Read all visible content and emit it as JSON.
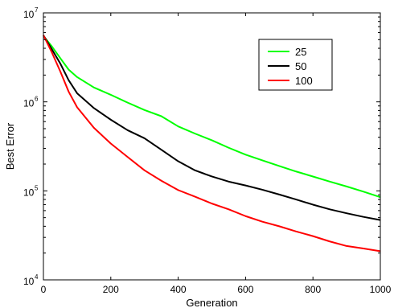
{
  "chart_data": {
    "type": "line",
    "title": "",
    "xlabel": "Generation",
    "ylabel": "Best Error",
    "xlim": [
      0,
      1000
    ],
    "ylim": [
      10000,
      10000000
    ],
    "yscale": "log",
    "grid": false,
    "legend_position": "top-right",
    "x_ticks": [
      {
        "value": 0,
        "label": "0"
      },
      {
        "value": 200,
        "label": "200"
      },
      {
        "value": 400,
        "label": "400"
      },
      {
        "value": 600,
        "label": "600"
      },
      {
        "value": 800,
        "label": "800"
      },
      {
        "value": 1000,
        "label": "1000"
      }
    ],
    "y_ticks": [
      {
        "value": 10000,
        "base": "10",
        "exp": "4"
      },
      {
        "value": 100000,
        "base": "10",
        "exp": "5"
      },
      {
        "value": 1000000,
        "base": "10",
        "exp": "6"
      },
      {
        "value": 10000000,
        "base": "10",
        "exp": "7"
      }
    ],
    "x": [
      0,
      25,
      50,
      75,
      100,
      150,
      200,
      250,
      300,
      350,
      400,
      450,
      500,
      550,
      600,
      650,
      700,
      750,
      800,
      850,
      900,
      950,
      1000
    ],
    "series": [
      {
        "name": "25",
        "color": "#00ff00",
        "values": [
          5500000,
          4200000,
          3100000,
          2300000,
          1900000,
          1450000,
          1200000,
          980000,
          810000,
          690000,
          530000,
          440000,
          370000,
          305000,
          255000,
          220000,
          190000,
          165000,
          145000,
          127000,
          112000,
          98000,
          85000
        ]
      },
      {
        "name": "50",
        "color": "#000000",
        "values": [
          5600000,
          3900000,
          2700000,
          1750000,
          1250000,
          850000,
          630000,
          480000,
          390000,
          290000,
          215000,
          170000,
          145000,
          127000,
          115000,
          103000,
          91000,
          80000,
          70000,
          62000,
          56000,
          51000,
          47000
        ]
      },
      {
        "name": "100",
        "color": "#ff0000",
        "values": [
          5600000,
          3600000,
          2200000,
          1300000,
          870000,
          510000,
          340000,
          240000,
          170000,
          130000,
          102000,
          86000,
          72000,
          62000,
          52000,
          45000,
          40000,
          35000,
          31000,
          27000,
          24000,
          22500,
          21000
        ]
      }
    ]
  }
}
